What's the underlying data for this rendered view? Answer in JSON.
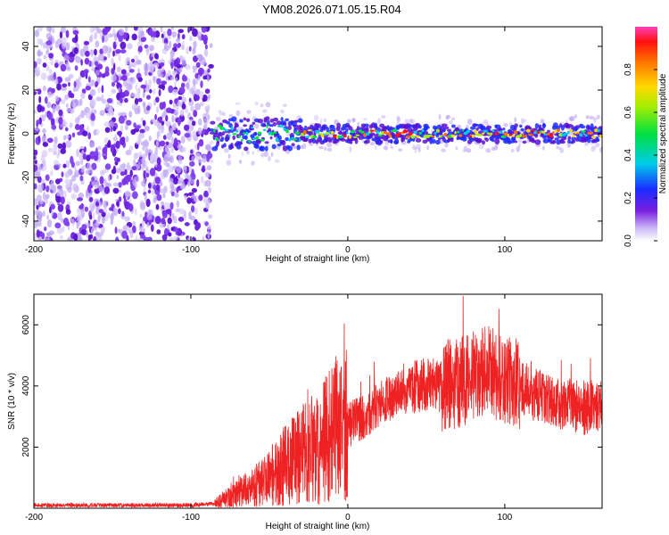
{
  "title": "YM08.2026.071.05.15.R04",
  "colors": {
    "trace": "#ee2222",
    "noise_dark": "#5a10d0",
    "noise_light": "#b9a0f0",
    "axis": "#000000"
  },
  "chart_data": [
    {
      "type": "heatmap",
      "name": "spectrogram",
      "xlabel": "Height of straight line (km)",
      "ylabel": "Frequency (Hz)",
      "xlim": [
        -200,
        162
      ],
      "ylim": [
        -49,
        49
      ],
      "xticks": [
        -200,
        -100,
        0,
        100
      ],
      "yticks": [
        -40,
        -20,
        0,
        20,
        40
      ],
      "noise_region_x": [
        -200,
        -87
      ],
      "signal_band_hz": [
        -4,
        4
      ],
      "colorbar": {
        "label": "Normalized spectral amplitude",
        "range": [
          0,
          1
        ],
        "ticks": [
          0.0,
          0.2,
          0.4,
          0.6,
          0.8
        ],
        "tick_labels": [
          "0.0",
          "0.2",
          "0.4",
          "0.6",
          "0.8"
        ],
        "colormap": "rainbow"
      }
    },
    {
      "type": "line",
      "name": "snr",
      "xlabel": "Height of straight line (km)",
      "ylabel": "SNR (10 * v/v)",
      "xlim": [
        -200,
        162
      ],
      "ylim": [
        0,
        7000
      ],
      "xticks": [
        -200,
        -100,
        0,
        100
      ],
      "yticks": [
        2000,
        4000,
        6000
      ],
      "series": [
        {
          "name": "SNR",
          "x": [
            -200,
            -150,
            -100,
            -85,
            -75,
            -60,
            -50,
            -40,
            -30,
            -20,
            -10,
            0,
            10,
            20,
            30,
            40,
            50,
            60,
            70,
            80,
            90,
            100,
            110,
            120,
            130,
            140,
            150,
            162
          ],
          "values": [
            100,
            100,
            100,
            150,
            400,
            700,
            1000,
            1400,
            1700,
            2000,
            2400,
            2700,
            3000,
            3400,
            3700,
            3900,
            4100,
            4000,
            4100,
            4300,
            4500,
            4200,
            4000,
            3700,
            3500,
            3400,
            3300,
            3300
          ]
        }
      ]
    }
  ]
}
